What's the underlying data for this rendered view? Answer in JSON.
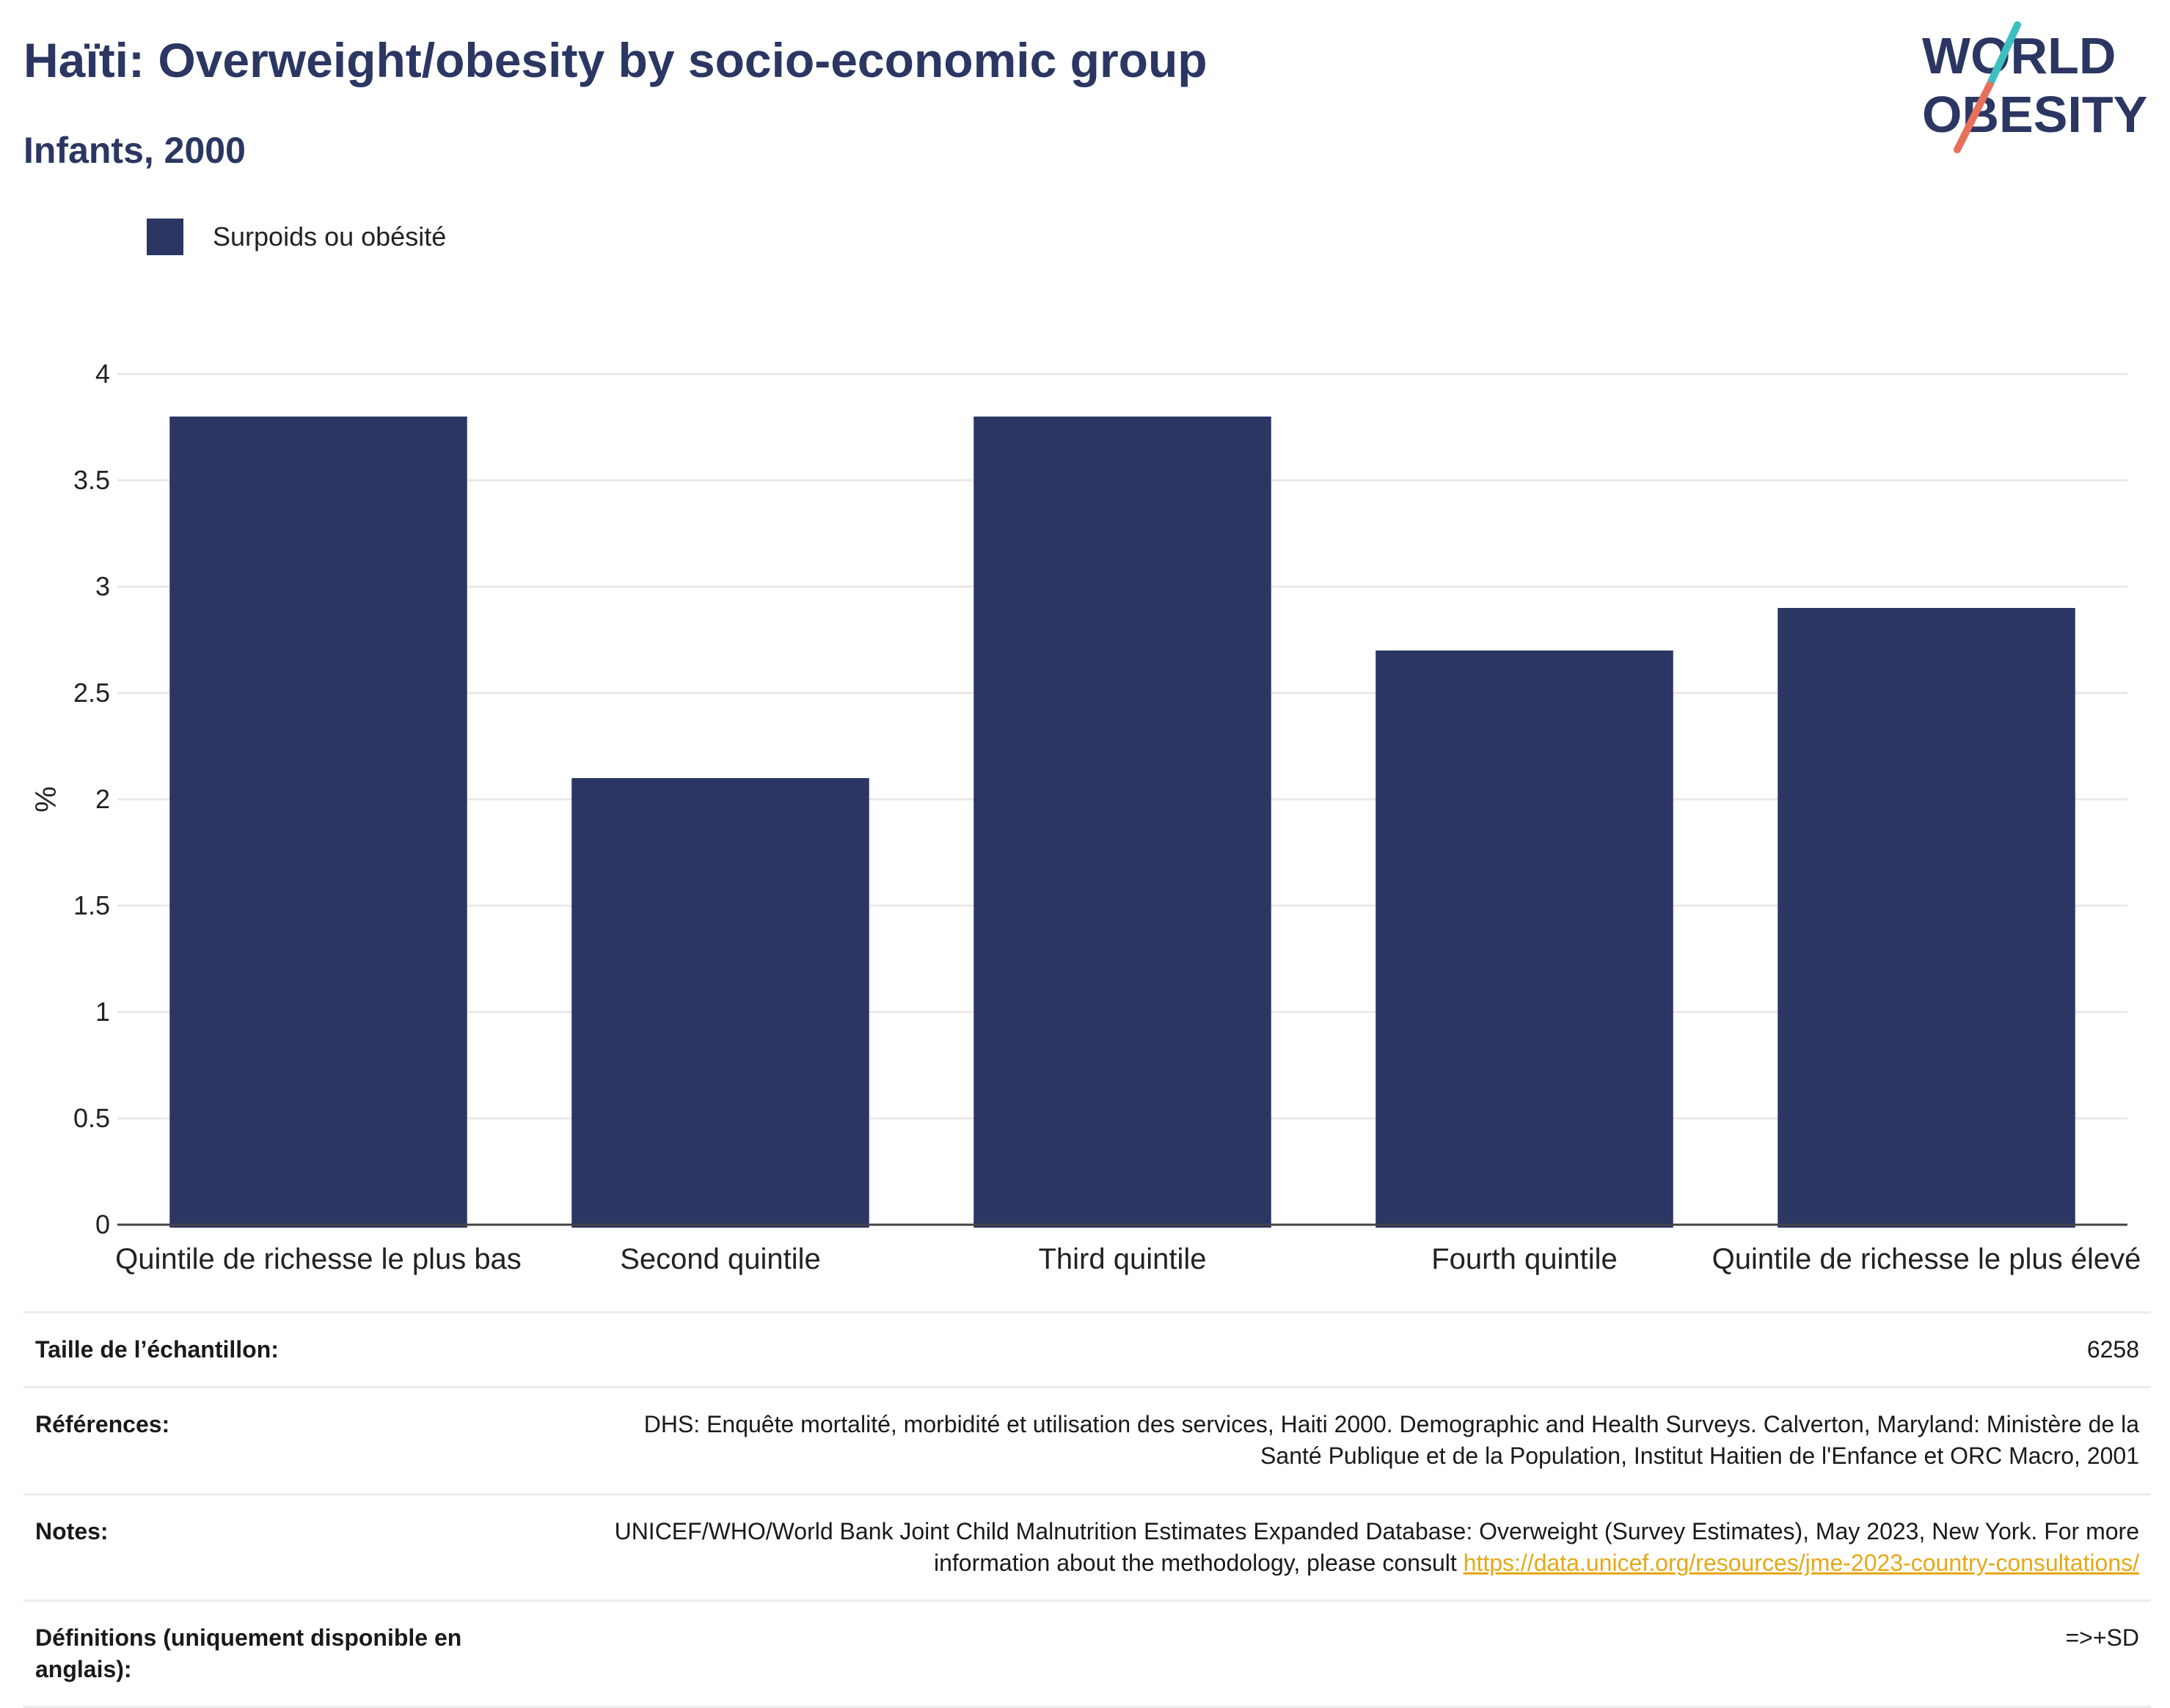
{
  "header": {
    "title": "Haïti: Overweight/obesity by socio-economic group",
    "subtitle": "Infants, 2000"
  },
  "logo": {
    "line1": "WORLD",
    "line2": "OBESITY",
    "text_color": "#2b3663",
    "slash_color_top": "#3bbfbf",
    "slash_color_bottom": "#e8705a"
  },
  "legend": {
    "label": "Surpoids ou obésité",
    "color": "#2b3663"
  },
  "chart_data": {
    "type": "bar",
    "categories": [
      "Quintile de richesse le plus bas",
      "Second quintile",
      "Third quintile",
      "Fourth quintile",
      "Quintile de richesse le plus élevé"
    ],
    "series": [
      {
        "name": "Surpoids ou obésité",
        "values": [
          3.8,
          2.1,
          3.8,
          2.7,
          2.9
        ],
        "color": "#2b3663"
      }
    ],
    "ylabel": "%",
    "ylim": [
      0,
      4
    ],
    "yticks": [
      "0",
      "0.5",
      "1",
      "1.5",
      "2",
      "2.5",
      "3",
      "3.5",
      "4"
    ],
    "grid": true
  },
  "meta": {
    "sample_label": "Taille de l’échantillon:",
    "sample_value": "6258",
    "references_label": "Références:",
    "references_value": "DHS: Enquête mortalité, morbidité et utilisation des services, Haiti 2000. Demographic and Health Surveys. Calverton, Maryland: Ministère de la Santé Publique et de la Population, Institut Haitien de l'Enfance et ORC Macro, 2001",
    "notes_label": "Notes:",
    "notes_value": "UNICEF/WHO/World Bank Joint Child Malnutrition Estimates Expanded Database: Overweight (Survey Estimates), May 2023, New York. For more information about the methodology, please consult ",
    "notes_link": "https://data.unicef.org/resources/jme-2023-country-consultations/",
    "definitions_label": "Définitions (uniquement disponible en anglais):",
    "definitions_value": "=>+SD"
  }
}
